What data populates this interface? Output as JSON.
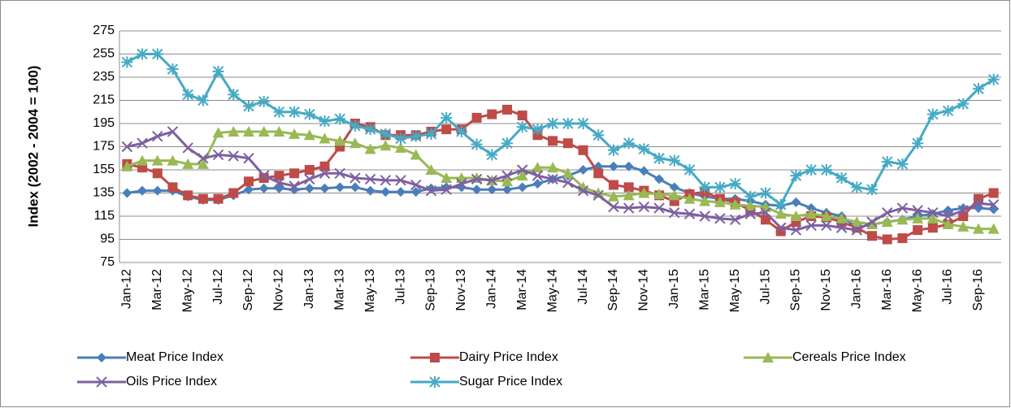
{
  "chart_data": {
    "type": "line",
    "y_label": "Index (2002 - 2004 = 100)",
    "categories": [
      "Jan-12",
      null,
      "Mar-12",
      null,
      "May-12",
      null,
      "Jul-12",
      null,
      "Sep-12",
      null,
      "Nov-12",
      null,
      "Jan-13",
      null,
      "Mar-13",
      null,
      "May-13",
      null,
      "Jul-13",
      null,
      "Sep-13",
      null,
      "Nov-13",
      null,
      "Jan-14",
      null,
      "Mar-14",
      null,
      "May-14",
      null,
      "Jul-14",
      null,
      "Sep-14",
      null,
      "Nov-14",
      null,
      "Jan-15",
      null,
      "Mar-15",
      null,
      "May-15",
      null,
      "Jul-15",
      null,
      "Sep-15",
      null,
      "Nov-15",
      null,
      "Jan-16",
      null,
      "Mar-16",
      null,
      "May-16",
      null,
      "Jul-16",
      null,
      "Sep-16",
      null
    ],
    "ylim": [
      75,
      275
    ],
    "yticks": [
      75,
      95,
      115,
      135,
      155,
      175,
      195,
      215,
      235,
      255,
      275
    ],
    "grid": true,
    "series": [
      {
        "name": "Meat Price Index",
        "color": "#4a7ebb",
        "marker": "diamond",
        "values": [
          135,
          137,
          137,
          137,
          132,
          129,
          129,
          133,
          138,
          139,
          139,
          138,
          139,
          139,
          140,
          140,
          137,
          136,
          136,
          136,
          139,
          140,
          140,
          138,
          138,
          138,
          140,
          143,
          147,
          150,
          155,
          158,
          158,
          158,
          154,
          147,
          140,
          135,
          132,
          130,
          130,
          128,
          125,
          124,
          127,
          122,
          118,
          115,
          105,
          108,
          110,
          112,
          115,
          117,
          120,
          122,
          122,
          121
        ]
      },
      {
        "name": "Dairy Price Index",
        "color": "#be4b48",
        "marker": "square",
        "values": [
          160,
          157,
          152,
          140,
          133,
          130,
          130,
          135,
          145,
          148,
          150,
          152,
          155,
          158,
          175,
          195,
          192,
          185,
          185,
          185,
          188,
          190,
          190,
          200,
          203,
          207,
          202,
          185,
          180,
          178,
          172,
          152,
          142,
          140,
          137,
          133,
          128,
          134,
          136,
          130,
          127,
          120,
          112,
          102,
          110,
          115,
          114,
          110,
          105,
          98,
          95,
          96,
          103,
          105,
          108,
          115,
          130,
          135
        ]
      },
      {
        "name": "Cereals Price Index",
        "color": "#98b954",
        "marker": "triangle",
        "values": [
          158,
          163,
          163,
          163,
          160,
          160,
          187,
          188,
          188,
          188,
          188,
          186,
          185,
          182,
          180,
          178,
          173,
          176,
          174,
          168,
          155,
          148,
          148,
          148,
          146,
          145,
          150,
          157,
          157,
          152,
          140,
          135,
          132,
          133,
          135,
          134,
          133,
          130,
          128,
          127,
          125,
          124,
          123,
          117,
          115,
          117,
          115,
          113,
          110,
          108,
          110,
          112,
          113,
          113,
          108,
          106,
          104,
          104
        ]
      },
      {
        "name": "Oils Price Index",
        "color": "#7d60a0",
        "marker": "x",
        "values": [
          175,
          178,
          184,
          188,
          174,
          165,
          168,
          167,
          165,
          150,
          144,
          141,
          147,
          152,
          152,
          148,
          147,
          146,
          146,
          142,
          137,
          138,
          143,
          147,
          146,
          150,
          155,
          150,
          147,
          144,
          137,
          133,
          123,
          122,
          123,
          122,
          118,
          117,
          115,
          113,
          112,
          117,
          118,
          105,
          103,
          107,
          107,
          105,
          103,
          110,
          118,
          122,
          120,
          118,
          115,
          120,
          126,
          125
        ]
      },
      {
        "name": "Sugar Price Index",
        "color": "#46aac5",
        "marker": "star",
        "values": [
          248,
          255,
          255,
          242,
          220,
          215,
          240,
          220,
          210,
          214,
          205,
          205,
          203,
          197,
          199,
          193,
          190,
          186,
          182,
          184,
          186,
          200,
          188,
          177,
          168,
          178,
          192,
          190,
          195,
          195,
          195,
          185,
          172,
          178,
          173,
          165,
          163,
          155,
          140,
          140,
          143,
          132,
          135,
          125,
          150,
          155,
          155,
          148,
          140,
          138,
          162,
          160,
          178,
          203,
          206,
          212,
          225,
          233
        ]
      }
    ]
  }
}
